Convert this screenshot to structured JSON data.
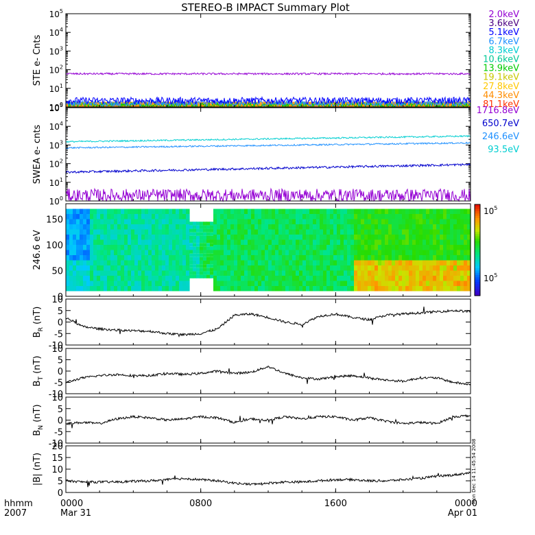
{
  "title": "STEREO-B IMPACT Summary Plot",
  "side_stamp": "Mon Dec 14 11:45:54 2008",
  "x_axis": {
    "corner_label_1": "hhmm",
    "corner_label_2": "2007",
    "ticks": [
      {
        "hour": 0,
        "label": "0000",
        "sub": "Mar 31"
      },
      {
        "hour": 8,
        "label": "0800",
        "sub": ""
      },
      {
        "hour": 16,
        "label": "1600",
        "sub": ""
      },
      {
        "hour": 24,
        "label": "0000",
        "sub": "Apr 01"
      }
    ],
    "range_hours": [
      0,
      24
    ]
  },
  "colors": {
    "axis": "#000000",
    "ste_fill_top": "#ff8c00"
  },
  "chart_data": [
    {
      "id": "ste",
      "type": "line",
      "ylabel": "STE e- Cnts",
      "yscale": "log",
      "ylim_exp": [
        0,
        5
      ],
      "legend_placement": "right",
      "legend": [
        {
          "label": "2.0keV",
          "color": "#9400d3"
        },
        {
          "label": "3.6keV",
          "color": "#4b0082"
        },
        {
          "label": "5.1keV",
          "color": "#0000ff"
        },
        {
          "label": "6.7keV",
          "color": "#1e90ff"
        },
        {
          "label": "8.3keV",
          "color": "#00ced1"
        },
        {
          "label": "10.6keV",
          "color": "#00c896"
        },
        {
          "label": "13.9keV",
          "color": "#00cc00"
        },
        {
          "label": "19.1keV",
          "color": "#c8c800"
        },
        {
          "label": "27.8keV",
          "color": "#ffc800"
        },
        {
          "label": "44.3keV",
          "color": "#ff8c00"
        },
        {
          "label": "81.1keV",
          "color": "#ff3200"
        }
      ],
      "series": [
        {
          "color": "#9400d3",
          "level": 60,
          "noise": 0.05
        },
        {
          "color": "#0000ff",
          "level": 2.2,
          "noise": 0.18
        },
        {
          "color": "#1e90ff",
          "level": 1.6,
          "noise": 0.16
        },
        {
          "color": "#00cc00",
          "level": 1.3,
          "noise": 0.14
        },
        {
          "color": "#ff8c00",
          "level": 1.1,
          "noise": 0.12
        }
      ]
    },
    {
      "id": "swea",
      "type": "line",
      "ylabel": "SWEA e- cnts",
      "yscale": "log",
      "ylim_exp": [
        0,
        5
      ],
      "legend_placement": "right",
      "legend": [
        {
          "label": "1716.8eV",
          "color": "#9400d3"
        },
        {
          "label": "650.7eV",
          "color": "#0000cd"
        },
        {
          "label": "246.6eV",
          "color": "#1e90ff"
        },
        {
          "label": "93.5eV",
          "color": "#00ced1"
        }
      ],
      "series": [
        {
          "color": "#00ced1",
          "start": 1500,
          "end": 3000,
          "noise": 0.04
        },
        {
          "color": "#1e90ff",
          "start": 700,
          "end": 1300,
          "noise": 0.04
        },
        {
          "color": "#0000cd",
          "start": 35,
          "end": 90,
          "noise": 0.06
        },
        {
          "color": "#9400d3",
          "start": 2,
          "end": 2,
          "noise": 0.35
        }
      ]
    },
    {
      "id": "pad",
      "type": "heatmap",
      "ylabel": "246.6 eV",
      "ylim": [
        0,
        180
      ],
      "yticks": [
        0,
        50,
        100,
        150
      ],
      "y_data_range": [
        10,
        170
      ],
      "colorbar": {
        "top_label_base": "10",
        "top_label_exp": "5",
        "bottom_label_base": "10",
        "bottom_label_exp": "5"
      }
    },
    {
      "id": "br",
      "type": "line",
      "ylabel": "B",
      "ylabel_sub": "R",
      "ylabel_unit": "(nT)",
      "ylim": [
        -10,
        10
      ],
      "yticks": [
        -10,
        -5,
        0,
        5,
        10
      ],
      "x_hours": [
        0,
        1,
        2,
        3,
        4,
        5,
        6,
        7,
        8,
        9,
        9.5,
        10,
        11,
        12,
        13,
        14,
        15,
        16,
        17,
        18,
        19,
        20,
        21,
        22,
        23,
        24
      ],
      "y": [
        2,
        -2,
        -3,
        -3.5,
        -3.8,
        -4,
        -5,
        -5.5,
        -5,
        -3,
        0,
        3,
        3.5,
        2,
        0,
        -1,
        2.5,
        3.5,
        2,
        1,
        3,
        3.5,
        4,
        4.5,
        5,
        4.5
      ]
    },
    {
      "id": "bt",
      "type": "line",
      "ylabel": "B",
      "ylabel_sub": "T",
      "ylabel_unit": "(nT)",
      "ylim": [
        -10,
        10
      ],
      "yticks": [
        -10,
        -5,
        0,
        5,
        10
      ],
      "x_hours": [
        0,
        1,
        2,
        3,
        4,
        5,
        6,
        7,
        8,
        9,
        10,
        11,
        12,
        13,
        14,
        15,
        16,
        17,
        18,
        19,
        20,
        21,
        22,
        23,
        24
      ],
      "y": [
        -5,
        -3,
        -2,
        -1.5,
        -2,
        -2,
        -1,
        -1.5,
        -1,
        0,
        -1,
        -0.5,
        2,
        -1,
        -3,
        -3.5,
        -2.5,
        -2,
        -3,
        -4,
        -4.5,
        -3,
        -3,
        -5,
        -6
      ]
    },
    {
      "id": "bn",
      "type": "line",
      "ylabel": "B",
      "ylabel_sub": "N",
      "ylabel_unit": "(nT)",
      "ylim": [
        -10,
        10
      ],
      "yticks": [
        -10,
        -5,
        0,
        5,
        10
      ],
      "x_hours": [
        0,
        1,
        2,
        3,
        4,
        5,
        6,
        7,
        8,
        9,
        10,
        11,
        12,
        13,
        14,
        15,
        16,
        17,
        18,
        19,
        20,
        21,
        22,
        23,
        24
      ],
      "y": [
        -1.5,
        -1,
        -1.5,
        0.5,
        1.5,
        1,
        0,
        0.5,
        1.5,
        1,
        -1,
        0.5,
        0,
        1.5,
        0.5,
        1.5,
        1.5,
        0,
        1,
        -0.5,
        -1.5,
        -1,
        -1.5,
        1.5,
        2
      ]
    },
    {
      "id": "bmag",
      "type": "line",
      "ylabel": "|B|",
      "ylabel_unit": "(nT)",
      "ylim": [
        0,
        20
      ],
      "yticks": [
        0,
        5,
        10,
        15,
        20
      ],
      "x_hours": [
        0,
        1,
        2,
        3,
        4,
        5,
        6,
        7,
        8,
        9,
        10,
        11,
        12,
        13,
        14,
        15,
        16,
        17,
        18,
        19,
        20,
        21,
        22,
        23,
        24
      ],
      "y": [
        5,
        4.5,
        4.5,
        4.5,
        4.8,
        5,
        5.5,
        6,
        5.5,
        5,
        4,
        3.5,
        4,
        4.5,
        4.5,
        5,
        5.5,
        5.5,
        5,
        5,
        5.5,
        6,
        7,
        7.5,
        8.5
      ]
    }
  ]
}
